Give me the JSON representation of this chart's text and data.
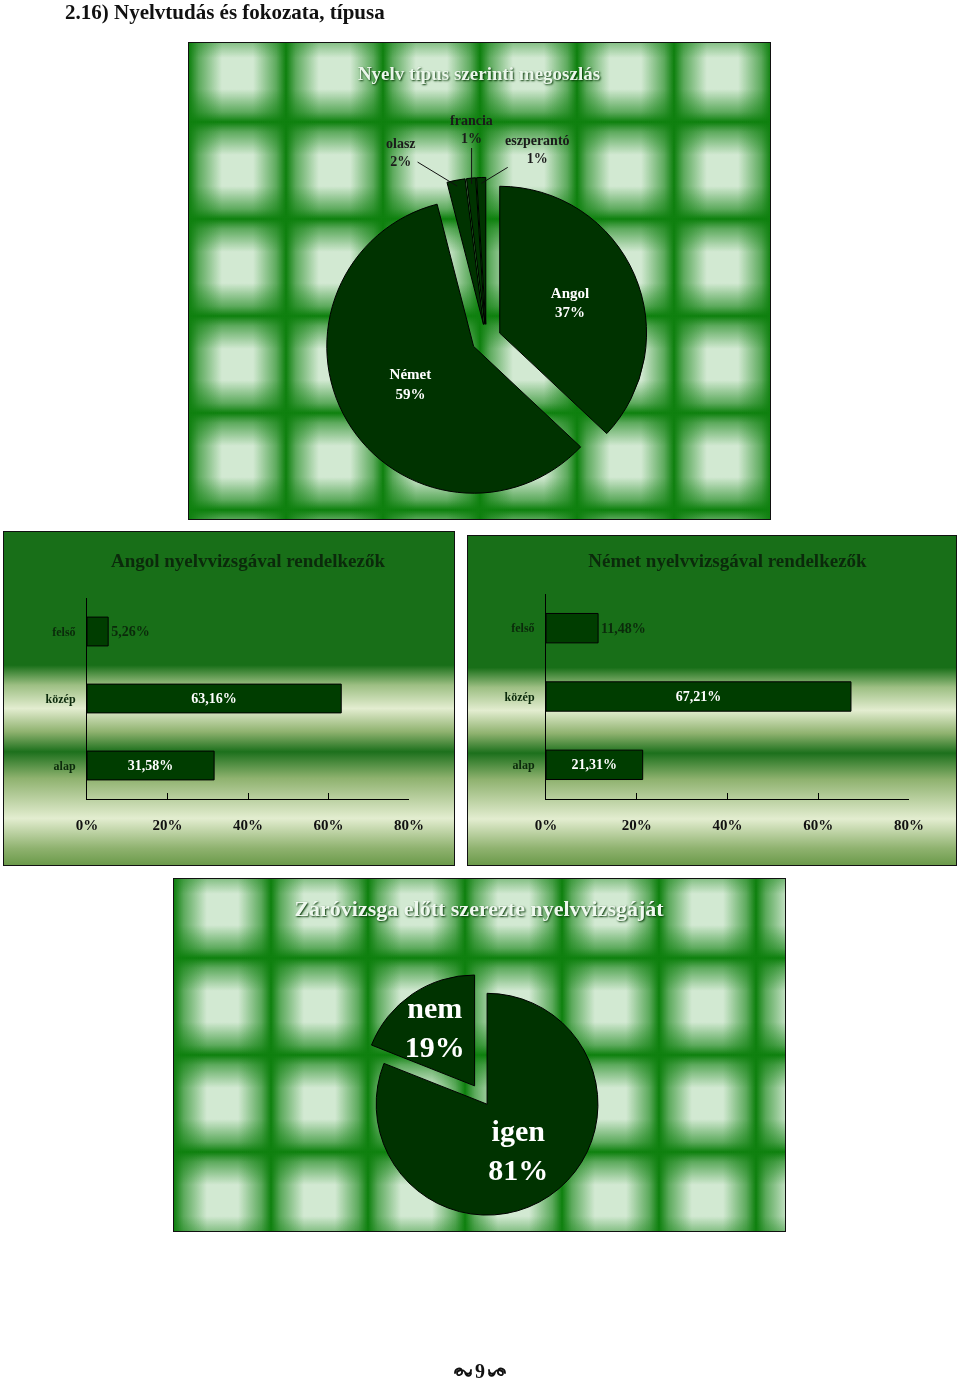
{
  "chart_data": [
    {
      "type": "pie",
      "title": "Nyelv típus szerinti megoszlás",
      "annotations": [
        "2.16) Nyelvtudás és fokozata, típusa"
      ],
      "categories": [
        "Angol",
        "Német",
        "olasz",
        "francia",
        "eszperantó"
      ],
      "values": [
        37,
        59,
        2,
        1,
        1
      ],
      "value_labels": [
        "37%",
        "59%",
        "2%",
        "1%",
        "1%"
      ],
      "colors": [
        "#003300",
        "#003300",
        "#003300",
        "#003300",
        "#003300"
      ]
    },
    {
      "type": "bar",
      "orientation": "horizontal",
      "title": "Angol nyelvvizsgával rendelkezők",
      "categories": [
        "felső",
        "közép",
        "alap"
      ],
      "values": [
        5.26,
        63.16,
        31.58
      ],
      "value_labels": [
        "5,26%",
        "63,16%",
        "31,58%"
      ],
      "color": "#003d00",
      "xlim": [
        0,
        80
      ],
      "xticks": [
        {
          "value": 0,
          "label": "0%"
        },
        {
          "value": 20,
          "label": "20%"
        },
        {
          "value": 40,
          "label": "40%"
        },
        {
          "value": 60,
          "label": "60%"
        },
        {
          "value": 80,
          "label": "80%"
        }
      ]
    },
    {
      "type": "bar",
      "orientation": "horizontal",
      "title": "Német nyelvvizsgával rendelkezők",
      "categories": [
        "felső",
        "közép",
        "alap"
      ],
      "values": [
        11.48,
        67.21,
        21.31
      ],
      "value_labels": [
        "11,48%",
        "67,21%",
        "21,31%"
      ],
      "color": "#003d00",
      "xlim": [
        0,
        80
      ],
      "xticks": [
        {
          "value": 0,
          "label": "0%"
        },
        {
          "value": 20,
          "label": "20%"
        },
        {
          "value": 40,
          "label": "40%"
        },
        {
          "value": 60,
          "label": "60%"
        },
        {
          "value": 80,
          "label": "80%"
        }
      ]
    },
    {
      "type": "pie",
      "title": "Záróvizsga előtt szerezte nyelvvizsgáját",
      "annotations": [
        "9"
      ],
      "categories": [
        "igen",
        "nem"
      ],
      "values": [
        81,
        19
      ],
      "value_labels": [
        "81%",
        "19%"
      ],
      "colors": [
        "#003300",
        "#003300"
      ]
    }
  ]
}
